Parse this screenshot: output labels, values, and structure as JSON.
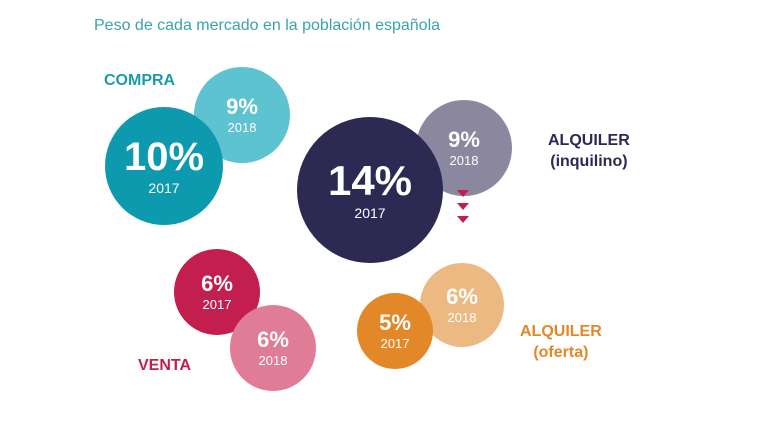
{
  "title": "Peso de cada mercado en la población española",
  "colors": {
    "title": "#3aa3a9",
    "compra_2017": "#0e9aae",
    "compra_2018": "#5ec3d0",
    "compra_label": "#1a9bab",
    "inquilino_2017": "#2c2a52",
    "inquilino_2018": "#8b879f",
    "inquilino_label": "#2c2a52",
    "venta_2017": "#c21f4e",
    "venta_2018": "#e07c96",
    "venta_label": "#c21f4e",
    "oferta_2017": "#e28829",
    "oferta_2018": "#ecb982",
    "oferta_label": "#e28829",
    "arrow": "#c21f4e"
  },
  "chart_data": {
    "type": "bubble",
    "title": "Peso de cada mercado en la población española",
    "series": [
      {
        "name": "COMPRA",
        "points": [
          {
            "year": "2017",
            "label": "10%",
            "value": 10
          },
          {
            "year": "2018",
            "label": "9%",
            "value": 9
          }
        ]
      },
      {
        "name": "ALQUILER (inquilino)",
        "points": [
          {
            "year": "2017",
            "label": "14%",
            "value": 14
          },
          {
            "year": "2018",
            "label": "9%",
            "value": 9
          }
        ]
      },
      {
        "name": "VENTA",
        "points": [
          {
            "year": "2017",
            "label": "6%",
            "value": 6
          },
          {
            "year": "2018",
            "label": "6%",
            "value": 6
          }
        ]
      },
      {
        "name": "ALQUILER (oferta)",
        "points": [
          {
            "year": "2017",
            "label": "5%",
            "value": 5
          },
          {
            "year": "2018",
            "label": "6%",
            "value": 6
          }
        ]
      }
    ]
  },
  "labels": {
    "compra": [
      "COMPRA"
    ],
    "inquilino": [
      "ALQUILER",
      "(inquilino)"
    ],
    "venta": [
      "VENTA"
    ],
    "oferta": [
      "ALQUILER",
      "(oferta)"
    ]
  }
}
